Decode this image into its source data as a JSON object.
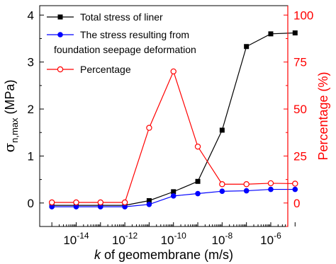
{
  "chart_data": {
    "type": "line",
    "xlabel": {
      "italic": "k",
      "rest": " of geomembrane (m/s)"
    },
    "ylabel_left": {
      "sym": "σ",
      "sub": "n,max",
      "unit": " (MPa)"
    },
    "ylabel_right": "Percentage (%)",
    "x_log_exponents": [
      -15,
      -14,
      -13,
      -12,
      -11,
      -10,
      -9,
      -8,
      -7,
      -6,
      -5
    ],
    "x_tick_labels": [
      {
        "base": "10",
        "exp": "-14",
        "at": -14
      },
      {
        "base": "10",
        "exp": "-12",
        "at": -12
      },
      {
        "base": "10",
        "exp": "-10",
        "at": -10
      },
      {
        "base": "10",
        "exp": "-8",
        "at": -8
      },
      {
        "base": "10",
        "exp": "-6",
        "at": -6
      }
    ],
    "xlim_log": [
      -15.5,
      -5.3
    ],
    "ylim_left": [
      -0.5,
      4.2
    ],
    "yticks_left": [
      0,
      1,
      2,
      3,
      4
    ],
    "ylim_right": [
      -12.5,
      105
    ],
    "yticks_right": [
      0,
      25,
      50,
      75,
      100
    ],
    "colors": {
      "total": "#000000",
      "seepage": "#0000ff",
      "percentage": "#ff0000",
      "right_axis": "#ff0000"
    },
    "legend_position": "top-left",
    "series": [
      {
        "name": "Total stress of liner",
        "axis": "left",
        "marker": "filled-square",
        "color": "#000000",
        "values": [
          -0.05,
          -0.05,
          -0.05,
          -0.05,
          0.05,
          0.24,
          0.46,
          1.55,
          3.33,
          3.6,
          3.62
        ]
      },
      {
        "name": "The stress resulting from",
        "name_line2": "foundation seepage deformation",
        "axis": "left",
        "marker": "filled-circle",
        "color": "#0000ff",
        "values": [
          -0.08,
          -0.08,
          -0.08,
          -0.08,
          -0.03,
          0.15,
          0.2,
          0.25,
          0.26,
          0.29,
          0.29
        ]
      },
      {
        "name": "Percentage",
        "axis": "right",
        "marker": "open-circle",
        "color": "#ff0000",
        "values": [
          0.3,
          0.3,
          0.3,
          0.3,
          40,
          70,
          30,
          10,
          10,
          10.5,
          10.3
        ]
      }
    ]
  }
}
